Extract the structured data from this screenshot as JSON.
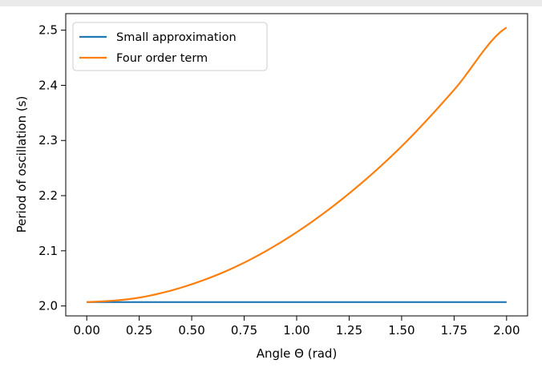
{
  "chart_data": {
    "type": "line",
    "title": "",
    "xlabel": "Angle Θ (rad)",
    "ylabel": "Period of oscillation (s)",
    "xlim": [
      -0.1,
      2.1
    ],
    "ylim": [
      1.982,
      2.53
    ],
    "xticks": [
      "0.00",
      "0.25",
      "0.50",
      "0.75",
      "1.00",
      "1.25",
      "1.50",
      "1.75",
      "2.00"
    ],
    "xtick_values": [
      0,
      0.25,
      0.5,
      0.75,
      1.0,
      1.25,
      1.5,
      1.75,
      2.0
    ],
    "yticks": [
      "2.0",
      "2.1",
      "2.2",
      "2.3",
      "2.4",
      "2.5"
    ],
    "ytick_values": [
      2.0,
      2.1,
      2.2,
      2.3,
      2.4,
      2.5
    ],
    "grid": false,
    "legend_position": "top-left",
    "series": [
      {
        "name": "Small approximation",
        "color": "#1f77b4",
        "x": [
          0,
          0.25,
          0.5,
          0.75,
          1.0,
          1.25,
          1.5,
          1.75,
          2.0
        ],
        "y": [
          2.007,
          2.007,
          2.007,
          2.007,
          2.007,
          2.007,
          2.007,
          2.007,
          2.007
        ]
      },
      {
        "name": "Four order term",
        "color": "#ff7f0e",
        "x": [
          0,
          0.25,
          0.5,
          0.75,
          1.0,
          1.25,
          1.5,
          1.75,
          2.0
        ],
        "y": [
          2.007,
          2.0151,
          2.0393,
          2.0785,
          2.1337,
          2.204,
          2.2894,
          2.3918,
          2.5049
        ]
      }
    ]
  }
}
